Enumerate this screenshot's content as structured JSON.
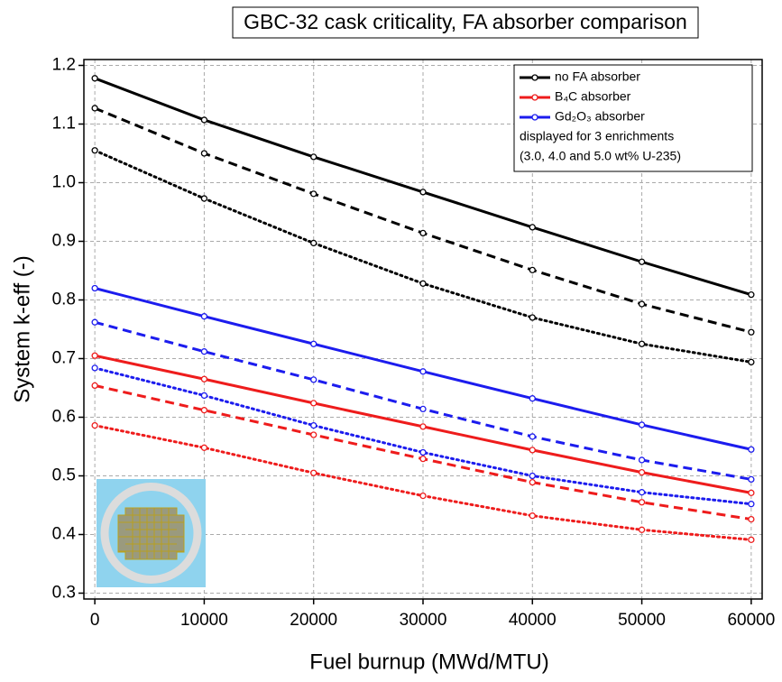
{
  "chart_data": {
    "type": "line",
    "title": "GBC-32 cask criticality, FA absorber comparison",
    "x_label": "Fuel burnup (MWd/MTU)",
    "y_label": "System k-eff (-)",
    "x": [
      0,
      10000,
      20000,
      30000,
      40000,
      50000,
      60000
    ],
    "series": [
      {
        "name": "no FA absorber",
        "color": "#000000",
        "dash": "solid",
        "values": [
          1.178,
          1.107,
          1.044,
          0.984,
          0.924,
          0.865,
          0.809
        ]
      },
      {
        "color": "#000000",
        "dash": "dash",
        "values": [
          1.127,
          1.05,
          0.981,
          0.914,
          0.851,
          0.793,
          0.745
        ]
      },
      {
        "color": "#000000",
        "dash": "dot",
        "values": [
          1.055,
          0.973,
          0.897,
          0.828,
          0.77,
          0.725,
          0.694
        ]
      },
      {
        "name": "B₄C absorber",
        "color": "#ee1c1c",
        "dash": "solid",
        "values": [
          0.705,
          0.665,
          0.624,
          0.584,
          0.544,
          0.506,
          0.471
        ]
      },
      {
        "color": "#ee1c1c",
        "dash": "dash",
        "values": [
          0.654,
          0.612,
          0.57,
          0.529,
          0.489,
          0.455,
          0.426
        ]
      },
      {
        "color": "#ee1c1c",
        "dash": "dot",
        "values": [
          0.586,
          0.548,
          0.505,
          0.466,
          0.432,
          0.408,
          0.391
        ]
      },
      {
        "name": "Gd₂O₃ absorber",
        "color": "#1c1cee",
        "dash": "solid",
        "values": [
          0.82,
          0.772,
          0.725,
          0.678,
          0.632,
          0.587,
          0.545
        ]
      },
      {
        "color": "#1c1cee",
        "dash": "dash",
        "values": [
          0.762,
          0.712,
          0.664,
          0.614,
          0.567,
          0.527,
          0.494
        ]
      },
      {
        "color": "#1c1cee",
        "dash": "dot",
        "values": [
          0.684,
          0.637,
          0.586,
          0.54,
          0.5,
          0.472,
          0.452
        ]
      }
    ],
    "legend_notes": [
      "displayed for 3 enrichments",
      "(3.0, 4.0 and 5.0 wt% U-235)"
    ],
    "legend_position": "upper right",
    "xlim": [
      -1000,
      61000
    ],
    "xticks": [
      0,
      10000,
      20000,
      30000,
      40000,
      50000,
      60000
    ],
    "ylim": [
      0.29,
      1.21
    ],
    "yticks": [
      0.3,
      0.4,
      0.5,
      0.6,
      0.7,
      0.8,
      0.9,
      {
        "value": 1,
        "label": "1.0"
      },
      1.1,
      1.2
    ],
    "grid": true
  }
}
